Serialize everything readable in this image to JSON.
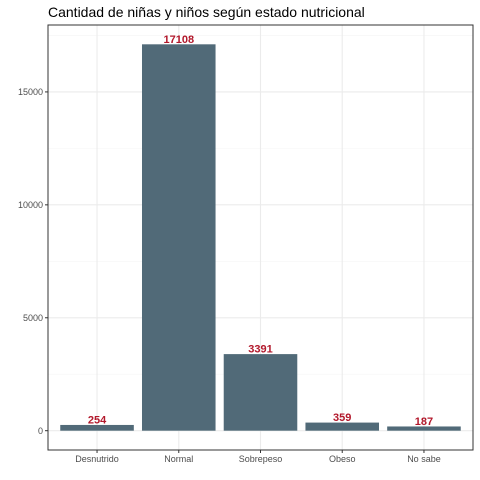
{
  "chart_data": {
    "type": "bar",
    "title": "Cantidad de niñas y niños según estado nutricional",
    "xlabel": "",
    "ylabel": "",
    "categories": [
      "Desnutrido",
      "Normal",
      "Sobrepeso",
      "Obeso",
      "No sabe"
    ],
    "values": [
      254,
      17108,
      3391,
      359,
      187
    ],
    "value_labels": [
      "254",
      "17108",
      "3391",
      "359",
      "187"
    ],
    "ylim": [
      -855,
      17963
    ],
    "yticks": [
      0,
      5000,
      10000,
      15000
    ],
    "ytick_labels": [
      "0",
      "5000",
      "10000",
      "15000"
    ],
    "grid": true,
    "legend": "none",
    "colors": {
      "bar": "#516a78",
      "data_label": "#b2182b",
      "grid_major": "#ebebeb",
      "grid_minor": "#f5f5f5",
      "panel_border": "#333333",
      "tick_label": "#4d4d4d"
    }
  }
}
